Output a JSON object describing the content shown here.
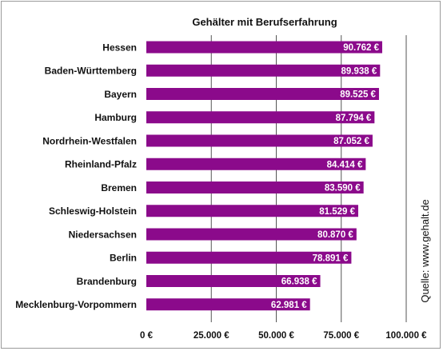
{
  "chart_data": {
    "type": "bar",
    "orientation": "horizontal",
    "title": "Gehälter mit Berufserfahrung",
    "categories": [
      "Hessen",
      "Baden-Württemberg",
      "Bayern",
      "Hamburg",
      "Nordrhein-Westfalen",
      "Rheinland-Pfalz",
      "Bremen",
      "Schleswig-Holstein",
      "Niedersachsen",
      "Berlin",
      "Brandenburg",
      "Mecklenburg-Vorpommern"
    ],
    "values": [
      90762,
      89938,
      89525,
      87794,
      87052,
      84414,
      83590,
      81529,
      80870,
      78891,
      66938,
      62981
    ],
    "value_labels": [
      "90.762 €",
      "89.938 €",
      "89.525 €",
      "87.794 €",
      "87.052 €",
      "84.414 €",
      "83.590 €",
      "81.529 €",
      "80.870 €",
      "78.891 €",
      "66.938 €",
      "62.981 €"
    ],
    "xlim": [
      0,
      100000
    ],
    "x_ticks": [
      0,
      25000,
      50000,
      75000,
      100000
    ],
    "x_tick_labels": [
      "0 €",
      "25.000 €",
      "50.000 €",
      "75.000 €",
      "100.000 €"
    ],
    "xlabel": "",
    "ylabel": "",
    "grid": "vertical",
    "legend": "none",
    "bar_color": "#8b0a8b",
    "grid_color": "#555555",
    "source": "Quelle: www.gehalt.de"
  }
}
